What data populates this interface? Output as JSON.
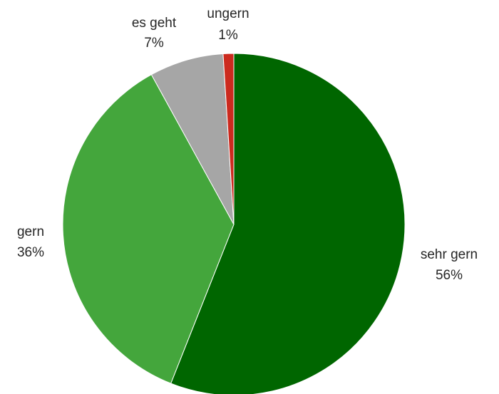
{
  "chart_data": {
    "type": "pie",
    "title": "",
    "start": "top, clockwise",
    "slices": [
      {
        "label": "sehr gern",
        "value": 56,
        "value_label": "56%",
        "color": "#006600"
      },
      {
        "label": "gern",
        "value": 36,
        "value_label": "36%",
        "color": "#44a63c"
      },
      {
        "label": "es geht",
        "value": 7,
        "value_label": "7%",
        "color": "#a6a6a6"
      },
      {
        "label": "ungern",
        "value": 1,
        "value_label": "1%",
        "color": "#cc2a1e"
      }
    ]
  }
}
